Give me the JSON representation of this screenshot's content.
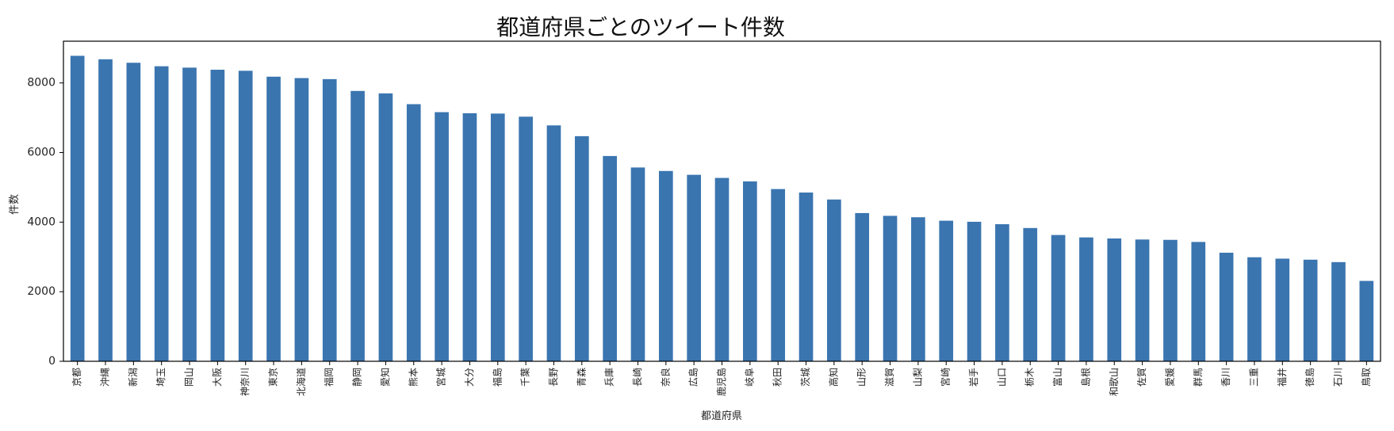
{
  "chart_data": {
    "type": "bar",
    "title": "都道府県ごとのツイート件数",
    "xlabel": "都道府県",
    "ylabel": "件数",
    "ylim": [
      0,
      9200
    ],
    "yticks": [
      0,
      2000,
      4000,
      6000,
      8000
    ],
    "grid": false,
    "bar_color": "#3a75b0",
    "categories": [
      "京都",
      "沖縄",
      "新潟",
      "埼玉",
      "岡山",
      "大阪",
      "神奈川",
      "東京",
      "北海道",
      "福岡",
      "静岡",
      "愛知",
      "熊本",
      "宮城",
      "大分",
      "福島",
      "千葉",
      "長野",
      "青森",
      "兵庫",
      "長崎",
      "奈良",
      "広島",
      "鹿児島",
      "岐阜",
      "秋田",
      "茨城",
      "高知",
      "山形",
      "滋賀",
      "山梨",
      "宮崎",
      "岩手",
      "山口",
      "栃木",
      "富山",
      "島根",
      "和歌山",
      "佐賀",
      "愛媛",
      "群馬",
      "香川",
      "三重",
      "福井",
      "徳島",
      "石川",
      "鳥取"
    ],
    "values": [
      8780,
      8680,
      8580,
      8480,
      8440,
      8380,
      8350,
      8180,
      8140,
      8110,
      7770,
      7700,
      7390,
      7160,
      7130,
      7120,
      7030,
      6780,
      6470,
      5900,
      5570,
      5470,
      5360,
      5270,
      5170,
      4950,
      4850,
      4650,
      4260,
      4180,
      4140,
      4040,
      4010,
      3940,
      3830,
      3630,
      3560,
      3530,
      3500,
      3490,
      3430,
      3120,
      2990,
      2950,
      2920,
      2850,
      2310
    ]
  }
}
